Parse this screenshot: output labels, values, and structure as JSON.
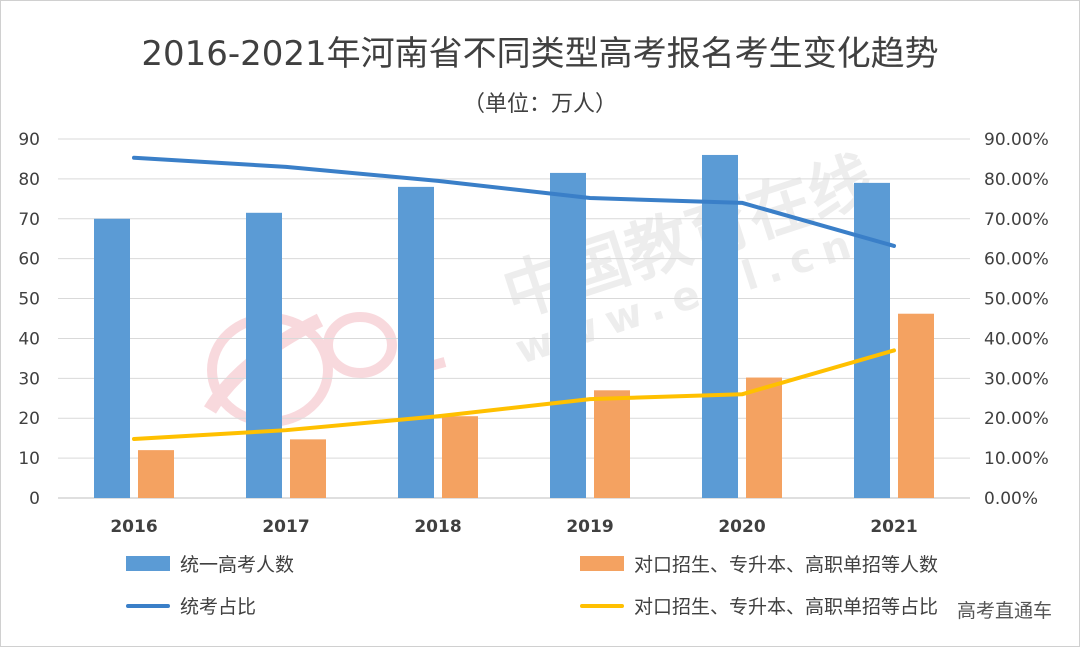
{
  "chart_data": {
    "type": "bar",
    "title": "2016-2021年河南省不同类型高考报名考生变化趋势",
    "subtitle": "（单位：万人）",
    "categories": [
      "2016",
      "2017",
      "2018",
      "2019",
      "2020",
      "2021"
    ],
    "ylim": [
      0,
      90
    ],
    "yticks": [
      "0",
      "10",
      "20",
      "30",
      "40",
      "50",
      "60",
      "70",
      "80",
      "90"
    ],
    "y2lim": [
      0,
      0.9
    ],
    "y2ticks": [
      "0.00%",
      "10.00%",
      "20.00%",
      "30.00%",
      "40.00%",
      "50.00%",
      "60.00%",
      "70.00%",
      "80.00%",
      "90.00%"
    ],
    "grid": true,
    "series": [
      {
        "name": "统一高考人数",
        "kind": "bar",
        "axis": "left",
        "color": "#5b9bd5",
        "values": [
          70,
          71.5,
          78,
          81.5,
          86,
          79
        ]
      },
      {
        "name": "对口招生、专升本、高职单招等人数",
        "kind": "bar",
        "axis": "left",
        "color": "#f4a261",
        "values": [
          12,
          14.7,
          20.5,
          27,
          30.2,
          46.2
        ]
      },
      {
        "name": "统考占比",
        "kind": "line",
        "axis": "right",
        "color": "#3a7fc8",
        "values": [
          0.853,
          0.83,
          0.795,
          0.752,
          0.74,
          0.632
        ]
      },
      {
        "name": "对口招生、专升本、高职单招等占比",
        "kind": "line",
        "axis": "right",
        "color": "#ffc000",
        "values": [
          0.148,
          0.17,
          0.205,
          0.248,
          0.26,
          0.37
        ]
      }
    ],
    "legend_position": "bottom"
  },
  "watermark": {
    "main": "中国教育在线",
    "sub": "www.eol.cn",
    "logo": "eol"
  },
  "credit": "高考直通车"
}
